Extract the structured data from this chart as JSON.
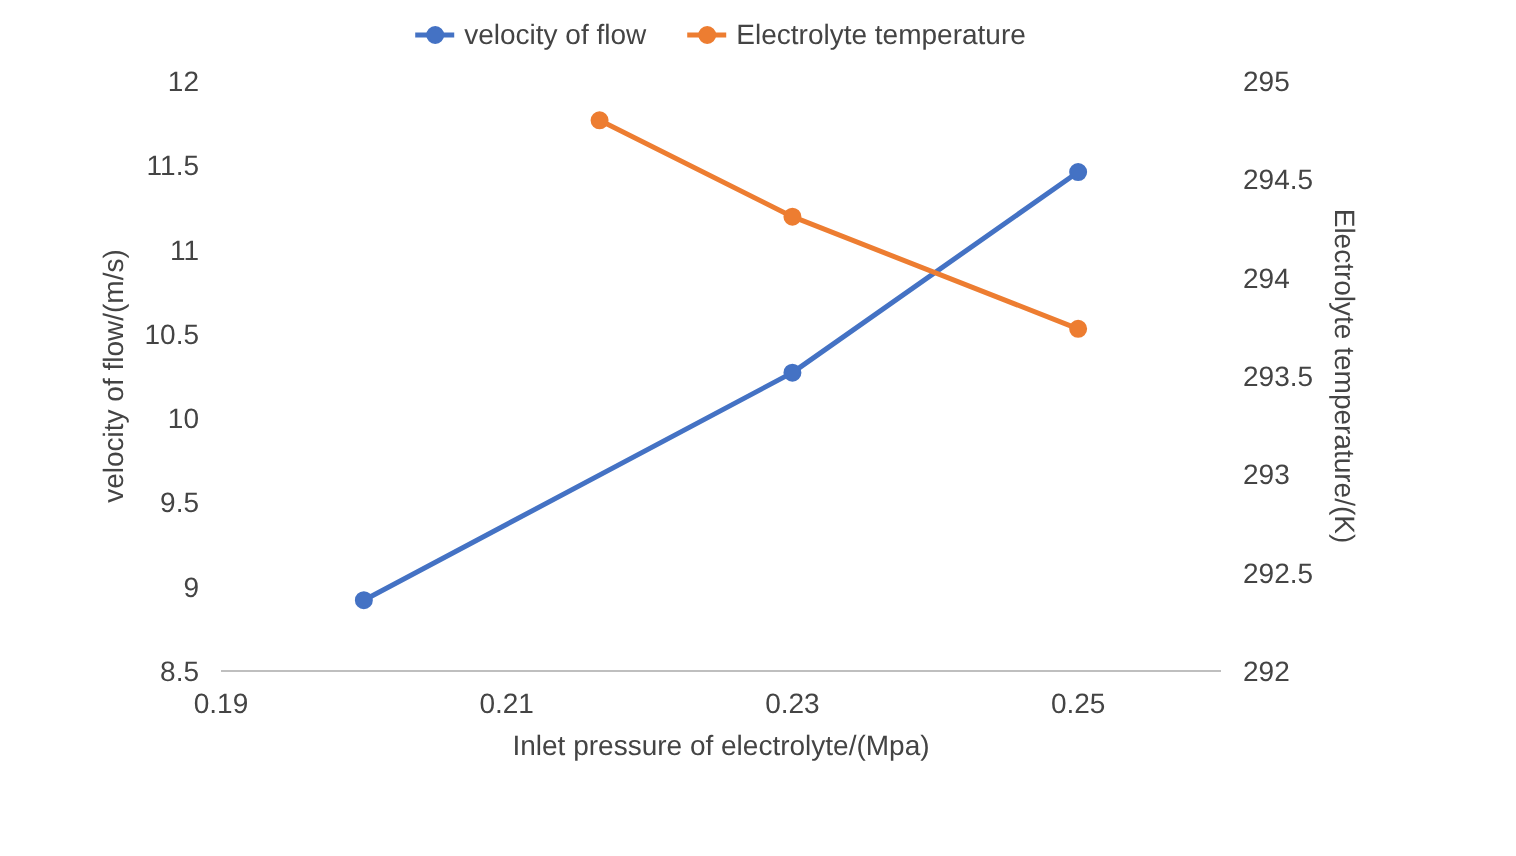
{
  "chart_data": {
    "type": "line",
    "xlabel": "Inlet pressure of electrolyte/(Mpa)",
    "ylabel": "velocity of flow/(m/s)",
    "y2label": "Electrolyte temperature/(K)",
    "x": [
      0.2,
      0.23,
      0.25
    ],
    "series": [
      {
        "name": "velocity of flow",
        "color": "#4472c4",
        "values": [
          8.92,
          10.27,
          11.46
        ]
      },
      {
        "name": "Electrolyte temperature",
        "color": "#ed7d31",
        "axis": "y2",
        "x": [
          0.2165,
          0.23,
          0.25
        ],
        "values": [
          294.8,
          294.31,
          293.74
        ]
      }
    ],
    "xlim": [
      0.19,
      0.26
    ],
    "xticks": [
      0.19,
      0.21,
      0.23,
      0.25
    ],
    "ylim": [
      8.5,
      12
    ],
    "yticks": [
      8.5,
      9,
      9.5,
      10,
      10.5,
      11,
      11.5,
      12
    ],
    "y2lim": [
      292,
      295
    ],
    "y2ticks": [
      292,
      292.5,
      293,
      293.5,
      294,
      294.5,
      295
    ],
    "grid": false,
    "legend": "top",
    "marker": "circle",
    "line_style": "solid"
  }
}
